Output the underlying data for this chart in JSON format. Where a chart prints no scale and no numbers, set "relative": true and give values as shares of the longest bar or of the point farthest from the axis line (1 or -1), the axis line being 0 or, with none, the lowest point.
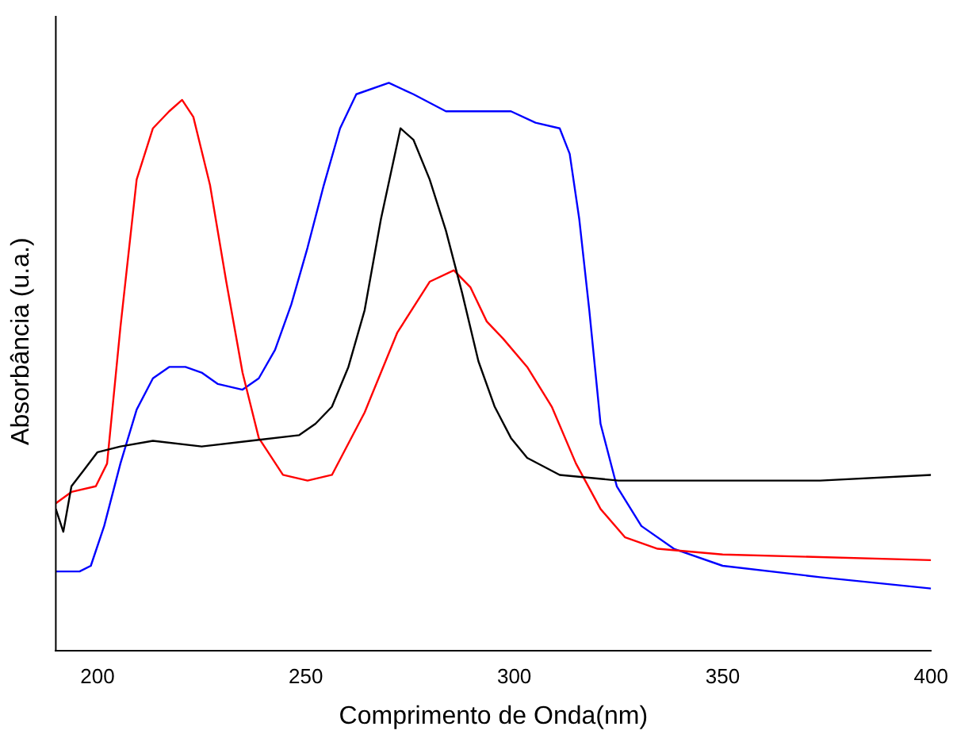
{
  "chart_data": {
    "type": "line",
    "xlabel": "Comprimento de Onda(nm)",
    "ylabel": "Absorbância (u.a.)",
    "relative": true,
    "xlim": [
      190,
      400
    ],
    "xticks": [
      200,
      250,
      300,
      350,
      400
    ],
    "grid": false,
    "legend": false,
    "marker": "none",
    "line_style": "solid",
    "series": [
      {
        "color": "#000000",
        "x": [
          190,
          191.8,
          193.75,
          196.9,
          200,
          205.5,
          213.3,
          225,
          236.7,
          248.4,
          252.3,
          256.25,
          260.2,
          264.1,
          268,
          272.7,
          275.8,
          279.7,
          283.6,
          287.5,
          291.4,
          295.3,
          299.2,
          303.1,
          310.9,
          325,
          350,
          373.4,
          400
        ],
        "values": [
          0.25,
          0.21,
          0.29,
          0.32,
          0.35,
          0.36,
          0.37,
          0.36,
          0.37,
          0.38,
          0.4,
          0.43,
          0.5,
          0.6,
          0.76,
          0.92,
          0.9,
          0.83,
          0.74,
          0.63,
          0.51,
          0.43,
          0.375,
          0.34,
          0.31,
          0.3,
          0.3,
          0.3,
          0.31
        ]
      },
      {
        "color": "#ff0000",
        "x": [
          190,
          193.75,
          199.6,
          202.3,
          205.5,
          209.4,
          213.3,
          217.2,
          220.3,
          223,
          227,
          230.9,
          234.8,
          238.7,
          244.5,
          250.4,
          256.25,
          264.1,
          271.9,
          279.7,
          285.5,
          289.5,
          293.4,
          297.3,
          303.1,
          309,
          314.8,
          320.7,
          326.6,
          334.4,
          350,
          400
        ],
        "values": [
          0.26,
          0.28,
          0.29,
          0.33,
          0.57,
          0.83,
          0.92,
          0.95,
          0.97,
          0.94,
          0.82,
          0.65,
          0.49,
          0.375,
          0.31,
          0.3,
          0.31,
          0.42,
          0.56,
          0.65,
          0.67,
          0.64,
          0.58,
          0.55,
          0.5,
          0.43,
          0.33,
          0.25,
          0.2,
          0.18,
          0.17,
          0.16
        ]
      },
      {
        "color": "#0000ff",
        "x": [
          190,
          195.7,
          198.4,
          201.6,
          205.5,
          209.4,
          213.3,
          217.2,
          221.1,
          225,
          228.9,
          234.8,
          238.7,
          242.6,
          246.5,
          250.4,
          254.3,
          258.2,
          262.1,
          269.9,
          275.8,
          283.6,
          291.4,
          299.2,
          305.1,
          310.9,
          313.3,
          315.6,
          318,
          320.7,
          324.6,
          330.5,
          338.3,
          350,
          373.4,
          400
        ],
        "values": [
          0.14,
          0.14,
          0.15,
          0.22,
          0.33,
          0.425,
          0.48,
          0.5,
          0.5,
          0.49,
          0.47,
          0.46,
          0.48,
          0.53,
          0.61,
          0.71,
          0.82,
          0.92,
          0.98,
          1,
          0.98,
          0.95,
          0.95,
          0.95,
          0.93,
          0.92,
          0.875,
          0.76,
          0.6,
          0.4,
          0.29,
          0.22,
          0.18,
          0.15,
          0.13,
          0.11
        ]
      }
    ]
  }
}
